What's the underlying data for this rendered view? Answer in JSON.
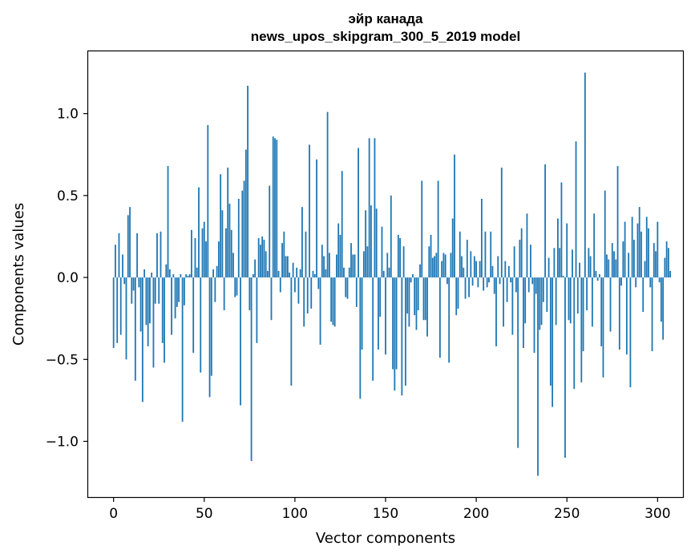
{
  "chart_data": {
    "type": "bar",
    "title": "эйр канада",
    "subtitle": "news_upos_skipgram_300_5_2019 model",
    "xlabel": "Vector components",
    "ylabel": "Components values",
    "xlim": [
      -14,
      314
    ],
    "ylim": [
      -1.34,
      1.38
    ],
    "xticks": [
      0,
      50,
      100,
      150,
      200,
      250,
      300
    ],
    "yticks": [
      -1.0,
      -0.5,
      0.0,
      0.5,
      1.0
    ],
    "ytick_labels": [
      "−1.0",
      "−0.5",
      "0.0",
      "0.5",
      "1.0"
    ],
    "grid": false,
    "bar_color": "#1f77b4",
    "values": [
      -0.43,
      0.2,
      -0.4,
      0.27,
      -0.35,
      0.14,
      -0.04,
      -0.5,
      0.38,
      0.43,
      -0.16,
      -0.08,
      -0.63,
      0.27,
      -0.06,
      -0.33,
      -0.76,
      0.05,
      -0.29,
      -0.42,
      -0.28,
      0.03,
      -0.55,
      -0.16,
      0.27,
      -0.16,
      0.28,
      -0.4,
      -0.52,
      0.08,
      0.68,
      0.05,
      -0.35,
      0.02,
      -0.25,
      -0.18,
      -0.15,
      0.02,
      -0.88,
      -0.17,
      0.02,
      0.01,
      0.02,
      0.29,
      -0.46,
      0.24,
      0.06,
      0.55,
      -0.58,
      0.3,
      0.34,
      0.22,
      0.93,
      -0.73,
      -0.6,
      0.05,
      -0.15,
      0.07,
      0.22,
      0.63,
      0.41,
      -0.2,
      0.3,
      0.67,
      0.45,
      0.29,
      0.15,
      -0.12,
      -0.11,
      0.48,
      -0.78,
      0.53,
      0.59,
      0.78,
      1.17,
      -0.2,
      -1.12,
      0.02,
      0.11,
      -0.4,
      0.24,
      0.2,
      0.25,
      0.23,
      0.16,
      0.04,
      0.56,
      -0.26,
      0.86,
      0.85,
      0.84,
      0.04,
      -0.09,
      0.21,
      0.28,
      0.13,
      0.13,
      0.03,
      -0.66,
      0.09,
      -0.09,
      0.06,
      -0.16,
      0.05,
      0.43,
      -0.3,
      0.28,
      -0.22,
      0.81,
      -0.19,
      0.04,
      0.02,
      0.72,
      -0.07,
      -0.41,
      0.2,
      0.13,
      0.05,
      1.01,
      0.15,
      -0.27,
      -0.29,
      -0.3,
      0.14,
      0.33,
      0.26,
      0.65,
      0.06,
      -0.12,
      -0.13,
      0.06,
      0.21,
      0.14,
      0.14,
      -0.18,
      0.79,
      -0.74,
      -0.44,
      0.16,
      0.41,
      0.19,
      0.85,
      0.44,
      -0.63,
      0.85,
      0.42,
      -0.44,
      -0.24,
      0.31,
      0.04,
      -0.47,
      0.15,
      0.06,
      0.5,
      -0.56,
      -0.69,
      -0.56,
      0.26,
      0.24,
      -0.72,
      0.19,
      -0.66,
      -0.22,
      -0.3,
      -0.03,
      0.02,
      -0.23,
      -0.32,
      -0.2,
      0.08,
      0.59,
      -0.26,
      -0.26,
      -0.36,
      0.19,
      0.26,
      0.12,
      0.13,
      0.15,
      0.59,
      -0.49,
      0.1,
      0.15,
      0.14,
      -0.04,
      -0.52,
      0.15,
      0.36,
      0.75,
      -0.23,
      -0.19,
      0.28,
      0.13,
      0.06,
      -0.13,
      0.23,
      -0.12,
      0.16,
      -0.05,
      0.13,
      0.1,
      -0.06,
      0.1,
      0.48,
      -0.08,
      0.28,
      -0.06,
      -0.03,
      0.28,
      0.07,
      -0.1,
      -0.42,
      0.13,
      -0.04,
      0.67,
      -0.3,
      0.1,
      -0.15,
      0.07,
      -0.03,
      -0.35,
      0.19,
      -0.09,
      -1.04,
      0.23,
      0.3,
      -0.43,
      -0.28,
      0.39,
      -0.09,
      0.2,
      -0.04,
      -0.46,
      -0.1,
      -1.21,
      -0.32,
      -0.29,
      -0.15,
      0.69,
      -0.21,
      0.12,
      -0.66,
      -0.79,
      0.18,
      -0.29,
      0.36,
      0.18,
      0.58,
      0.01,
      -1.1,
      0.33,
      -0.26,
      -0.28,
      0.17,
      -0.68,
      0.83,
      -0.22,
      0.09,
      -0.64,
      -0.45,
      1.25,
      -0.2,
      0.18,
      0.13,
      -0.3,
      0.39,
      0.04,
      -0.02,
      0.02,
      -0.42,
      -0.61,
      0.53,
      0.14,
      0.11,
      -0.33,
      0.21,
      0.16,
      0.11,
      0.68,
      -0.44,
      -0.05,
      0.22,
      0.34,
      -0.47,
      0.15,
      -0.67,
      0.37,
      0.23,
      -0.06,
      0.33,
      0.43,
      0.28,
      -0.21,
      0.1,
      0.37,
      0.3,
      -0.06,
      -0.45,
      0.21,
      0.16,
      0.34,
      -0.03,
      -0.27,
      -0.38,
      0.12,
      0.22,
      0.18,
      0.04
    ]
  }
}
